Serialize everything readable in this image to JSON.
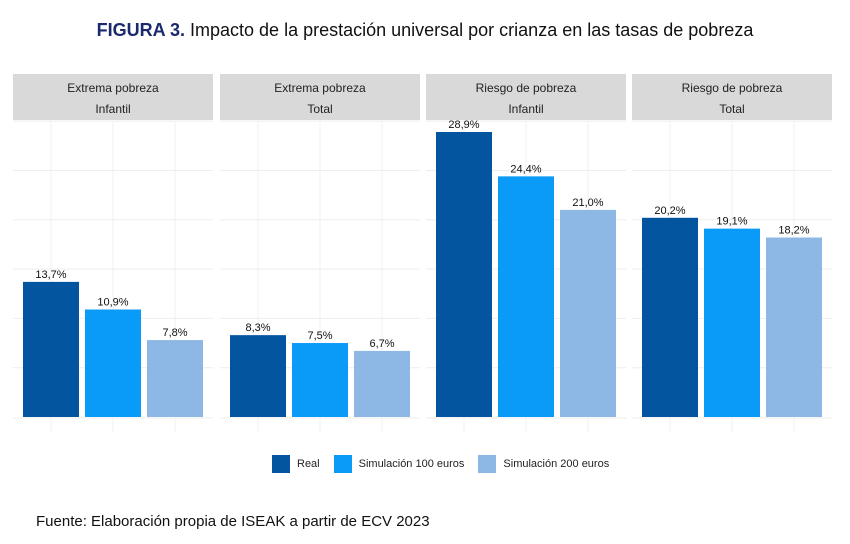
{
  "title": {
    "prefix": "FIGURA 3.",
    "text": "Impacto de la prestación universal por crianza en las tasas de pobreza"
  },
  "chart_data": {
    "type": "bar",
    "title": "Impacto de la prestación universal por crianza en las tasas de pobreza",
    "xlabel": "",
    "ylabel": "",
    "ylim": [
      0,
      31
    ],
    "grid": true,
    "legend_position": "bottom",
    "facets": [
      {
        "line1": "Extrema pobreza",
        "line2": "Infantil",
        "values": [
          13.7,
          10.9,
          7.8
        ],
        "labels": [
          "13,7%",
          "10,9%",
          "7,8%"
        ]
      },
      {
        "line1": "Extrema pobreza",
        "line2": "Total",
        "values": [
          8.3,
          7.5,
          6.7
        ],
        "labels": [
          "8,3%",
          "7,5%",
          "6,7%"
        ]
      },
      {
        "line1": "Riesgo de pobreza",
        "line2": "Infantil",
        "values": [
          28.9,
          24.4,
          21.0
        ],
        "labels": [
          "28,9%",
          "24,4%",
          "21,0%"
        ]
      },
      {
        "line1": "Riesgo de pobreza",
        "line2": "Total",
        "values": [
          20.2,
          19.1,
          18.2
        ],
        "labels": [
          "20,2%",
          "19,1%",
          "18,2%"
        ]
      }
    ],
    "series": [
      {
        "name": "Real",
        "color": "#04559f"
      },
      {
        "name": "Simulación 100 euros",
        "color": "#0a9bf8"
      },
      {
        "name": "Simulación 200 euros",
        "color": "#8db7e4"
      }
    ]
  },
  "source": "Fuente: Elaboración propia de ISEAK a partir de ECV 2023"
}
